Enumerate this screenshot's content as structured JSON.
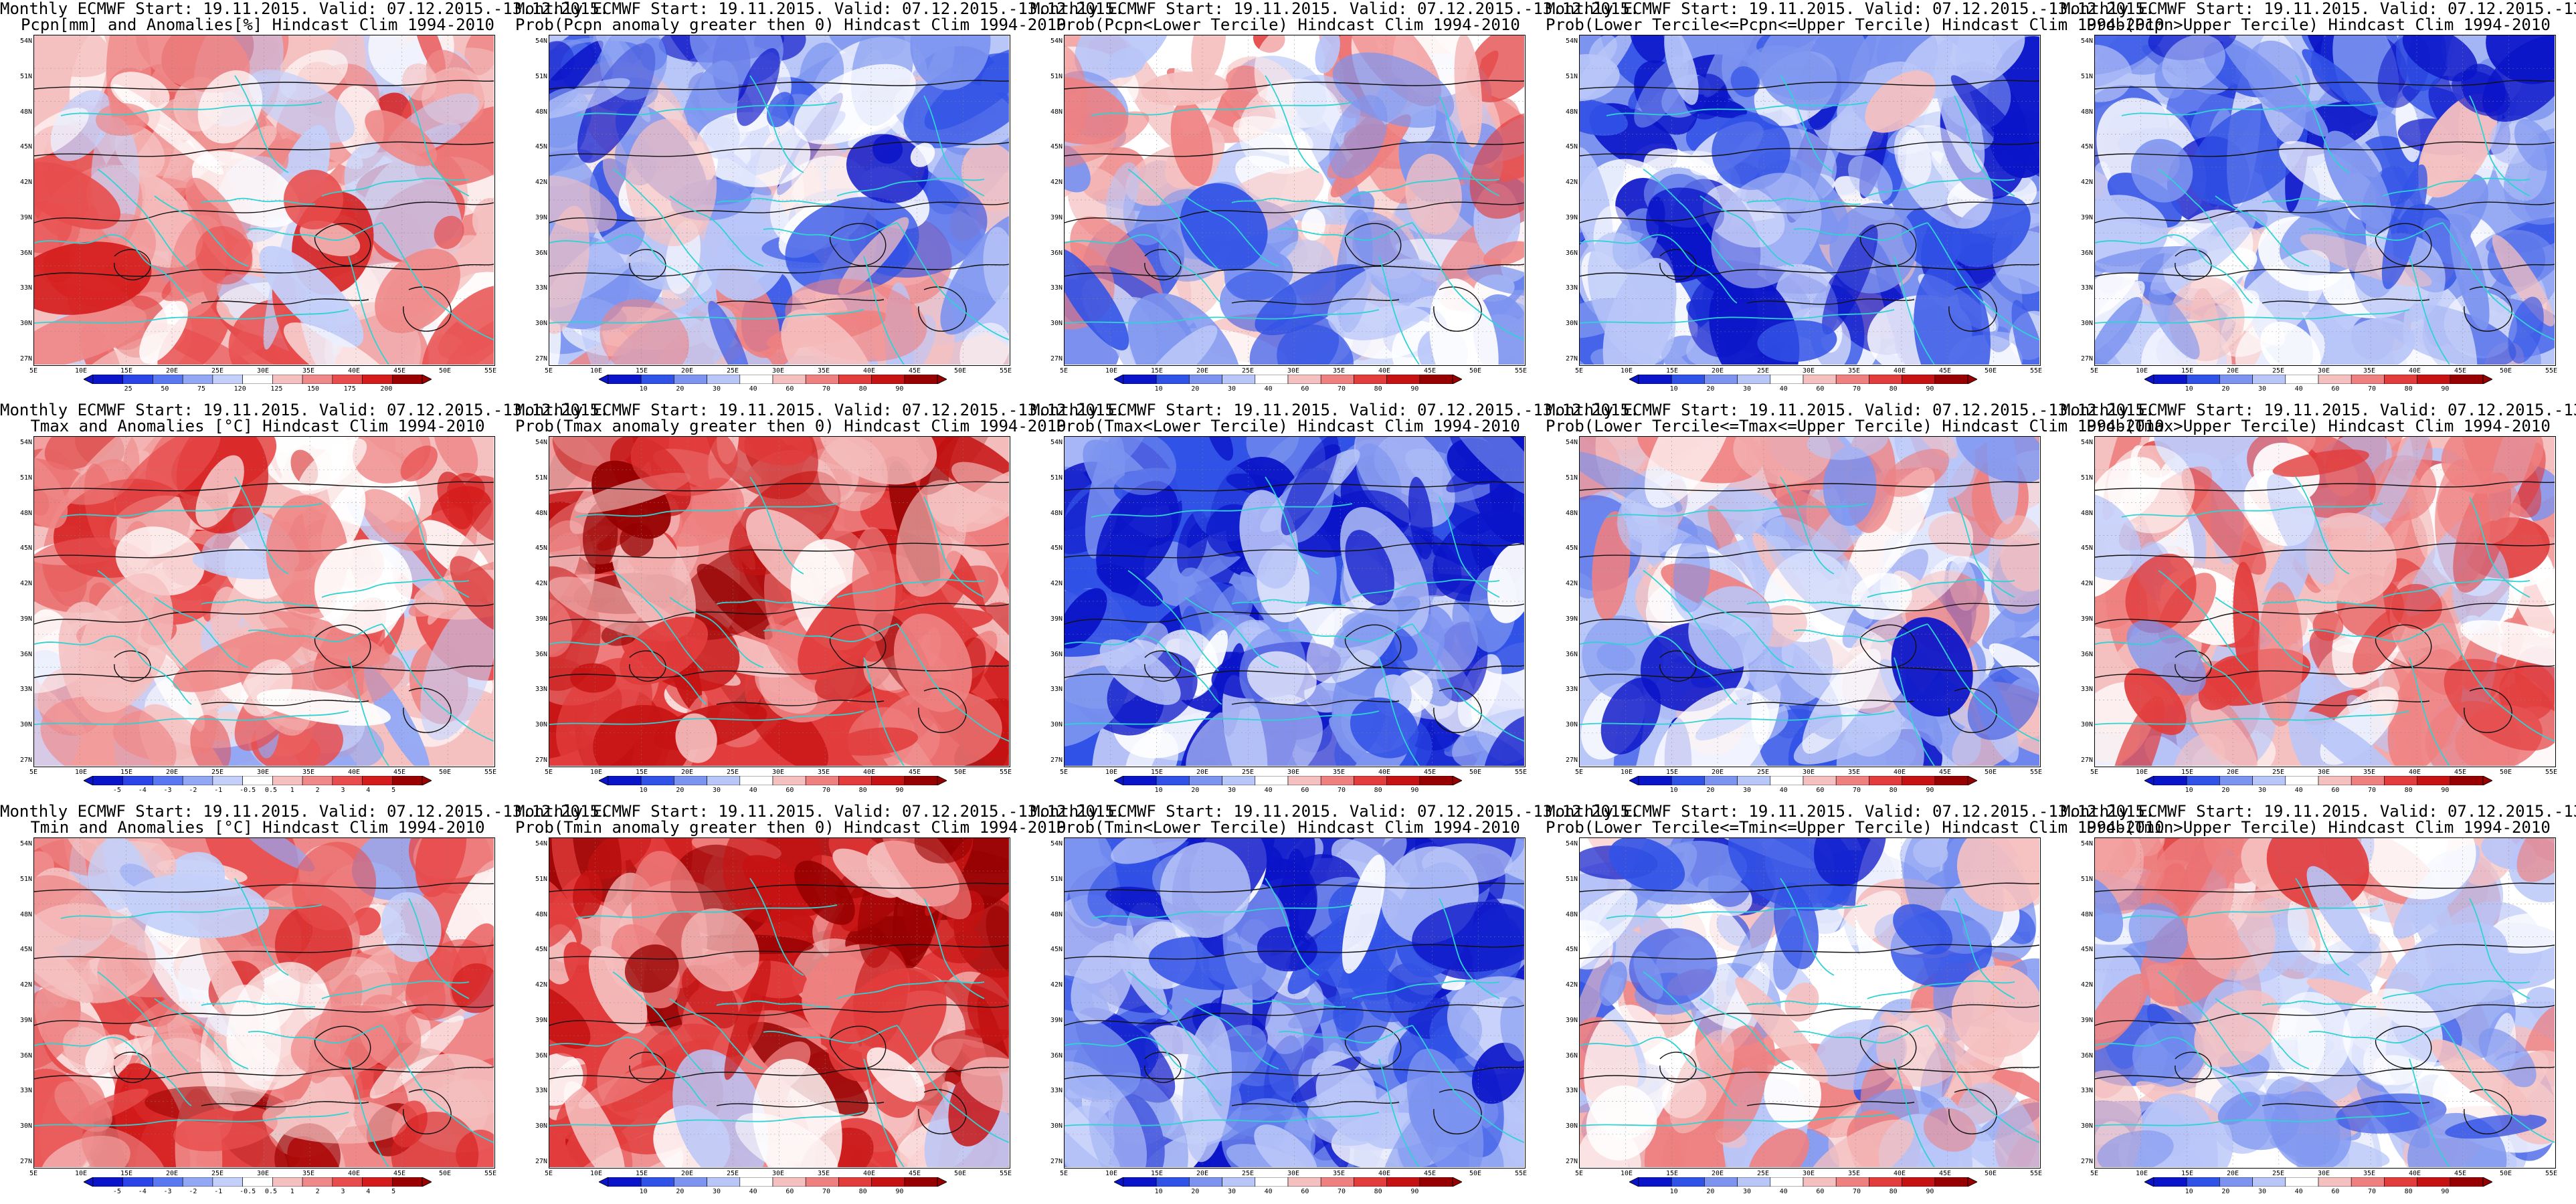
{
  "lat_labels": [
    "54N",
    "51N",
    "48N",
    "45N",
    "42N",
    "39N",
    "36N",
    "33N",
    "30N",
    "27N"
  ],
  "lon_labels": [
    "5E",
    "10E",
    "15E",
    "20E",
    "25E",
    "30E",
    "35E",
    "40E",
    "45E",
    "50E",
    "55E"
  ],
  "colors": {
    "coast": "#2fd3d3",
    "contour": "#111111",
    "scale_10": [
      "#0a14c8",
      "#2a44e8",
      "#5a78f2",
      "#92a8f5",
      "#c4d0fa",
      "#ffffff",
      "#f5c0c0",
      "#ef8888",
      "#e84c4c",
      "#d51c1c",
      "#9b0000"
    ],
    "scale_9": [
      "#0a14c8",
      "#3152e6",
      "#7c94f0",
      "#b9c6f8",
      "#ffffff",
      "#f5c0c0",
      "#ef8080",
      "#e23c3c",
      "#c61212",
      "#960000"
    ]
  },
  "colorbar_labels": {
    "pcpn": [
      "25",
      "50",
      "75",
      "120",
      "125",
      "150",
      "175",
      "200"
    ],
    "temp": [
      "-5",
      "-4",
      "-3",
      "-2",
      "-1",
      "-0.5",
      "0.5",
      "1",
      "2",
      "3",
      "4",
      "5"
    ],
    "prob": [
      "10",
      "20",
      "30",
      "40",
      "60",
      "70",
      "80",
      "90"
    ]
  },
  "panels": [
    {
      "title1": "Monthly ECMWF Start: 19.11.2015. Valid: 07.12.2015.-13.12.2015.",
      "title2": "Pcpn[mm] and Anomalies[%] Hindcast Clim 1994-2010",
      "mean": 1.2,
      "scale": "pcpn",
      "pattern": 1,
      "bar": "pcpn"
    },
    {
      "title1": "Monthly ECMWF Start: 19.11.2015. Valid: 07.12.2015.-13.12.2015.",
      "title2": "Prob(Pcpn anomaly greater then 0) Hindcast Clim 1994-2010",
      "mean": -1.6,
      "scale": "prob",
      "pattern": 2,
      "bar": "prob"
    },
    {
      "title1": "Monthly ECMWF Start: 19.11.2015. Valid: 07.12.2015.-13.12.2015.",
      "title2": "Prob(Pcpn<Lower Tercile) Hindcast Clim 1994-2010",
      "mean": -0.6,
      "scale": "prob",
      "pattern": 3,
      "bar": "prob"
    },
    {
      "title1": "Monthly ECMWF Start: 19.11.2015. Valid: 07.12.2015.-13.12.2015.",
      "title2": "Prob(Lower Tercile<=Pcpn<=Upper Tercile) Hindcast Clim 1994-2010",
      "mean": -2.4,
      "scale": "prob",
      "pattern": 4,
      "bar": "prob"
    },
    {
      "title1": "Monthly ECMWF Start: 19.11.2015. Valid: 07.12.2015.-13.12.2015.",
      "title2": "Prob(Pcpn>Upper Tercile) Hindcast Clim 1994-2010",
      "mean": -2.0,
      "scale": "prob",
      "pattern": 5,
      "bar": "prob"
    },
    {
      "title1": "Monthly ECMWF Start: 19.11.2015. Valid: 07.12.2015.-13.12.2015.",
      "title2": "Tmax and Anomalies [°C] Hindcast Clim 1994-2010",
      "mean": 1.4,
      "scale": "temp",
      "pattern": 6,
      "bar": "temp"
    },
    {
      "title1": "Monthly ECMWF Start: 19.11.2015. Valid: 07.12.2015.-13.12.2015.",
      "title2": "Prob(Tmax anomaly greater then 0) Hindcast Clim 1994-2010",
      "mean": 2.4,
      "scale": "prob",
      "pattern": 7,
      "bar": "prob"
    },
    {
      "title1": "Monthly ECMWF Start: 19.11.2015. Valid: 07.12.2015.-13.12.2015.",
      "title2": "Prob(Tmax<Lower Tercile) Hindcast Clim 1994-2010",
      "mean": -3.2,
      "scale": "prob",
      "pattern": 8,
      "bar": "prob"
    },
    {
      "title1": "Monthly ECMWF Start: 19.11.2015. Valid: 07.12.2015.-13.12.2015.",
      "title2": "Prob(Lower Tercile<=Tmax<=Upper Tercile) Hindcast Clim 1994-2010",
      "mean": -1.2,
      "scale": "prob",
      "pattern": 9,
      "bar": "prob"
    },
    {
      "title1": "Monthly ECMWF Start: 19.11.2015. Valid: 07.12.2015.-13.12.2015.",
      "title2": "Prob(Tmax>Upper Tercile) Hindcast Clim 1994-2010",
      "mean": 0.4,
      "scale": "prob",
      "pattern": 10,
      "bar": "prob"
    },
    {
      "title1": "Monthly ECMWF Start: 19.11.2015. Valid: 07.12.2015.-13.12.2015.",
      "title2": "Tmin and Anomalies [°C] Hindcast Clim 1994-2010",
      "mean": 1.6,
      "scale": "temp",
      "pattern": 11,
      "bar": "temp"
    },
    {
      "title1": "Monthly ECMWF Start: 19.11.2015. Valid: 07.12.2015.-13.12.2015.",
      "title2": "Prob(Tmin anomaly greater then 0) Hindcast Clim 1994-2010",
      "mean": 2.2,
      "scale": "prob",
      "pattern": 12,
      "bar": "prob"
    },
    {
      "title1": "Monthly ECMWF Start: 19.11.2015. Valid: 07.12.2015.-13.12.2015.",
      "title2": "Prob(Tmin<Lower Tercile) Hindcast Clim 1994-2010",
      "mean": -3.0,
      "scale": "prob",
      "pattern": 13,
      "bar": "prob"
    },
    {
      "title1": "Monthly ECMWF Start: 19.11.2015. Valid: 07.12.2015.-13.12.2015.",
      "title2": "Prob(Lower Tercile<=Tmin<=Upper Tercile) Hindcast Clim 1994-2010",
      "mean": -1.0,
      "scale": "prob",
      "pattern": 14,
      "bar": "prob"
    },
    {
      "title1": "Monthly ECMWF Start: 19.11.2015. Valid: 07.12.2015.-13.12.2015.",
      "title2": "Prob(Tmin>Upper Tercile) Hindcast Clim 1994-2010",
      "mean": -0.6,
      "scale": "prob",
      "pattern": 15,
      "bar": "prob"
    }
  ]
}
